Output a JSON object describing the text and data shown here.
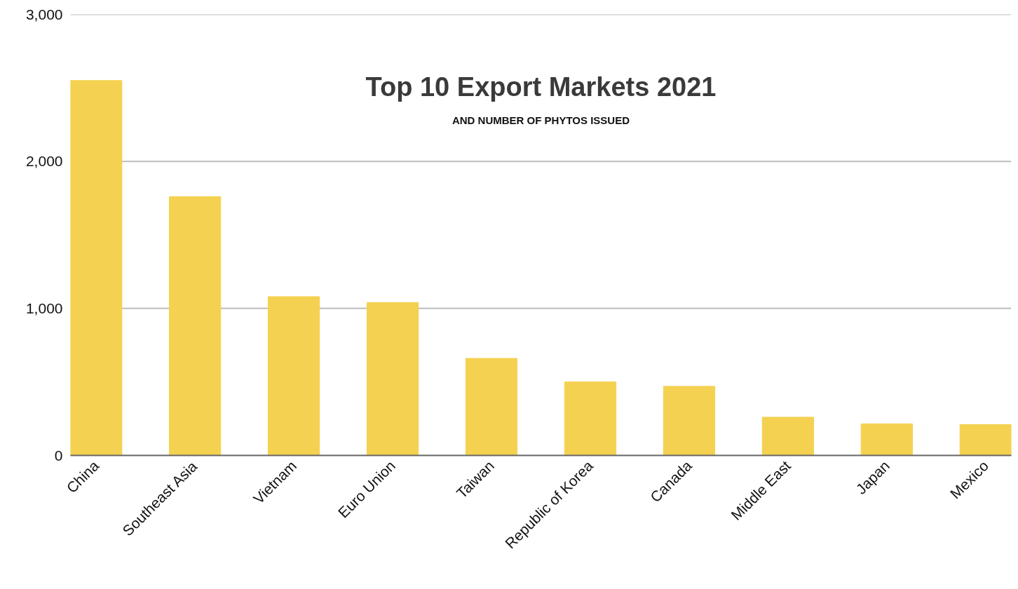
{
  "chart_data": {
    "type": "bar",
    "title": "Top 10 Export Markets 2021",
    "subtitle": "AND NUMBER OF PHYTOS ISSUED",
    "categories": [
      "China",
      "Southeast Asia",
      "Vietnam",
      "Euro Union",
      "Taiwan",
      "Republic of Korea",
      "Canada",
      "Middle East",
      "Japan",
      "Mexico"
    ],
    "values": [
      2550,
      1760,
      1080,
      1040,
      660,
      500,
      470,
      260,
      215,
      210
    ],
    "color": "#f4d150",
    "ylim": [
      0,
      3000
    ],
    "yticks": [
      0,
      {
        "value": 1000,
        "label": "1,000"
      },
      {
        "value": 2000,
        "label": "2,000"
      },
      {
        "value": 3000,
        "label": "3,000"
      }
    ],
    "grid": "y"
  }
}
